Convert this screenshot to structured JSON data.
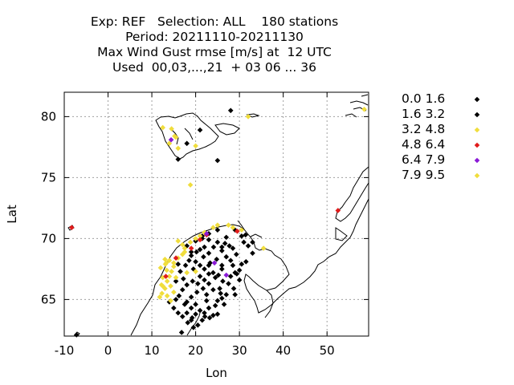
{
  "title": {
    "line1": "Exp: REF   Selection: ALL    180 stations",
    "line2": "Period: 20211110-20211130",
    "line3": "Max Wind Gust rmse [m/s] at  12 UTC",
    "line4": "Used  00,03,...,21  + 03 06 ... 36"
  },
  "chart_data": {
    "type": "scatter",
    "xlabel": "Lon",
    "ylabel": "Lat",
    "xlim": [
      -10,
      59.5
    ],
    "ylim": [
      62,
      82
    ],
    "xticks": [
      -10,
      0,
      10,
      20,
      30,
      40,
      50
    ],
    "yticks": [
      65,
      70,
      75,
      80
    ],
    "grid": true,
    "legend_position": "right",
    "series": [
      {
        "name": "0.0 1.6",
        "color": "#000000",
        "points": [
          [
            28,
            80.5
          ],
          [
            21,
            78.9
          ],
          [
            18,
            77.8
          ],
          [
            16,
            76.5
          ],
          [
            25,
            76.4
          ],
          [
            27.7,
            69.4
          ],
          [
            29,
            70.7
          ],
          [
            30.5,
            70.2
          ],
          [
            31,
            69.7
          ],
          [
            32,
            69.4
          ],
          [
            33,
            69.7
          ],
          [
            33,
            68.8
          ],
          [
            31.5,
            68.1
          ],
          [
            27,
            68.5
          ],
          [
            28,
            68.2
          ],
          [
            28.5,
            67.8
          ],
          [
            26,
            67.5
          ],
          [
            29,
            67.2
          ],
          [
            30,
            66.6
          ],
          [
            28,
            66.9
          ],
          [
            26.2,
            66.5
          ],
          [
            24.5,
            66.8
          ],
          [
            23,
            67.1
          ],
          [
            22,
            67.5
          ],
          [
            21,
            67.8
          ],
          [
            20,
            68.1
          ],
          [
            21.8,
            68.5
          ],
          [
            23,
            68.8
          ],
          [
            24.1,
            69.3
          ],
          [
            25,
            69.7
          ],
          [
            26.7,
            69.6
          ],
          [
            25,
            70.7
          ],
          [
            23,
            69.9
          ],
          [
            22,
            69.3
          ],
          [
            21,
            69.1
          ],
          [
            20.2,
            68.9
          ],
          [
            19,
            68.6
          ],
          [
            18.5,
            68.2
          ],
          [
            17.7,
            67.8
          ],
          [
            19.5,
            67.5
          ],
          [
            21,
            66.9
          ],
          [
            19.3,
            66.5
          ],
          [
            18,
            66.2
          ],
          [
            17,
            65.8
          ],
          [
            16.2,
            65.3
          ],
          [
            18,
            64.8
          ],
          [
            19,
            65.2
          ],
          [
            20.3,
            65.6
          ],
          [
            21.7,
            65.9
          ],
          [
            23,
            66.3
          ],
          [
            22.5,
            65.4
          ],
          [
            24,
            65.8
          ],
          [
            25.5,
            65.9
          ],
          [
            26,
            65.1
          ],
          [
            27,
            65.4
          ],
          [
            24.5,
            64.5
          ],
          [
            23,
            64.3
          ],
          [
            21,
            64.1
          ],
          [
            20,
            64.6
          ],
          [
            19,
            64.3
          ],
          [
            18,
            63.9
          ],
          [
            17,
            63.6
          ],
          [
            18.2,
            63.1
          ],
          [
            19.2,
            63.5
          ],
          [
            20,
            63.8
          ],
          [
            21.5,
            63.3
          ],
          [
            20.5,
            62.9
          ],
          [
            19.5,
            62.7
          ],
          [
            16,
            63.9
          ],
          [
            15,
            64.3
          ],
          [
            15.5,
            65.0
          ],
          [
            14,
            64.8
          ],
          [
            17.5,
            64.6
          ],
          [
            25,
            64.9
          ],
          [
            25.7,
            65.5
          ],
          [
            26.5,
            64.6
          ],
          [
            24,
            63.7
          ],
          [
            22.5,
            64.9
          ],
          [
            22.1,
            63.6
          ],
          [
            26,
            67.8
          ],
          [
            24.8,
            68.3
          ],
          [
            28.5,
            69.2
          ],
          [
            26,
            69.0
          ],
          [
            29.3,
            68.7
          ],
          [
            27,
            70.1
          ],
          [
            23.3,
            68.0
          ],
          [
            22,
            66.6
          ],
          [
            20.5,
            66.3
          ],
          [
            16.5,
            67.3
          ],
          [
            17.2,
            66.7
          ],
          [
            15.5,
            66.5
          ],
          [
            16,
            67.9
          ],
          [
            18,
            69.4
          ],
          [
            19,
            68.9
          ],
          [
            20,
            69.8
          ],
          [
            21.5,
            70.2
          ],
          [
            23,
            70.4
          ],
          [
            23,
            67.8
          ],
          [
            24,
            67.2
          ],
          [
            25.2,
            67.0
          ],
          [
            27.5,
            66.3
          ],
          [
            28.7,
            65.9
          ],
          [
            29,
            65.4
          ],
          [
            30,
            67.4
          ],
          [
            30.5,
            67.9
          ],
          [
            29.4,
            67.1
          ],
          [
            25,
            63.8
          ],
          [
            23.2,
            63.5
          ],
          [
            22,
            63.9
          ],
          [
            19,
            63.3
          ],
          [
            16.8,
            62.3
          ],
          [
            -7.2,
            62.1
          ]
        ]
      },
      {
        "name": "1.6 3.2",
        "color": "#000000",
        "points": [
          [
            21.5,
            70.0
          ],
          [
            26,
            69.3
          ],
          [
            31.4,
            70.3
          ]
        ]
      },
      {
        "name": "3.2 4.8",
        "color": "#f0dd3c",
        "points": [
          [
            32,
            80.0
          ],
          [
            58.5,
            80.6
          ],
          [
            12.5,
            79.1
          ],
          [
            14.5,
            79.0
          ],
          [
            15.5,
            78.3
          ],
          [
            14,
            77.8
          ],
          [
            16,
            77.4
          ],
          [
            20,
            77.6
          ],
          [
            18.8,
            74.4
          ],
          [
            25,
            71.1
          ],
          [
            27.5,
            71.1
          ],
          [
            28.5,
            70.9
          ],
          [
            30.5,
            70.7
          ],
          [
            35.5,
            69.2
          ],
          [
            13,
            68.3
          ],
          [
            14,
            68.2
          ],
          [
            13.3,
            68.0
          ],
          [
            15,
            68.0
          ],
          [
            13.1,
            67.9
          ],
          [
            12,
            67.6
          ],
          [
            13.4,
            67.4
          ],
          [
            14.5,
            67.3
          ],
          [
            14,
            66.9
          ],
          [
            12.5,
            66.8
          ],
          [
            13.5,
            66.5
          ],
          [
            12.2,
            66.2
          ],
          [
            14.3,
            66.1
          ],
          [
            13,
            65.9
          ],
          [
            12.3,
            65.5
          ],
          [
            11.8,
            65.2
          ],
          [
            13.5,
            65.3
          ],
          [
            14.3,
            64.9
          ],
          [
            15,
            65.6
          ],
          [
            15.5,
            66.8
          ],
          [
            15,
            67.7
          ],
          [
            16,
            68.4
          ],
          [
            17,
            68.7
          ],
          [
            17.5,
            69.2
          ],
          [
            18.8,
            69.7
          ],
          [
            20,
            70.0
          ],
          [
            21,
            70.2
          ],
          [
            16,
            69.8
          ],
          [
            17.5,
            68.9
          ],
          [
            22,
            70.5
          ],
          [
            18,
            67.2
          ],
          [
            20,
            67.3
          ]
        ]
      },
      {
        "name": "4.8 6.4",
        "color": "#e01b1b",
        "points": [
          [
            -8.3,
            70.9
          ],
          [
            52.5,
            72.3
          ],
          [
            15.5,
            68.4
          ],
          [
            19,
            69.2
          ],
          [
            21,
            69.9
          ],
          [
            22.5,
            70.3
          ],
          [
            29.5,
            70.6
          ],
          [
            13.2,
            66.9
          ]
        ]
      },
      {
        "name": "6.4 7.9",
        "color": "#8a1ad6",
        "points": [
          [
            14.4,
            78.1
          ],
          [
            22.5,
            70.4
          ],
          [
            24.3,
            68.0
          ],
          [
            27,
            67.0
          ]
        ]
      },
      {
        "name": "7.9 9.5",
        "color": "#f0dd3c",
        "points": [
          [
            15.2,
            78.4
          ],
          [
            24,
            70.9
          ],
          [
            17,
            69.5
          ],
          [
            12.5,
            66.1
          ]
        ]
      }
    ]
  }
}
